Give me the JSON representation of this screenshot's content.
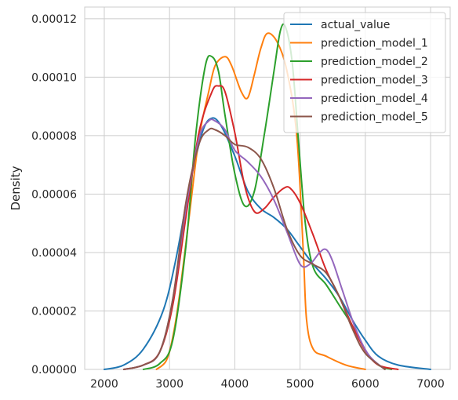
{
  "chart_data": {
    "type": "line",
    "title": "",
    "xlabel": "",
    "ylabel": "Density",
    "xlim": [
      1700,
      7300
    ],
    "ylim": [
      0,
      0.000124
    ],
    "xticks": [
      2000,
      3000,
      4000,
      5000,
      6000,
      7000
    ],
    "xtick_labels": [
      "2000",
      "3000",
      "4000",
      "5000",
      "6000",
      "7000"
    ],
    "yticks": [
      0,
      2e-05,
      4e-05,
      6e-05,
      8e-05,
      0.0001,
      0.00012
    ],
    "ytick_labels": [
      "0.00000",
      "0.00002",
      "0.00004",
      "0.00006",
      "0.00008",
      "0.00010",
      "0.00012"
    ],
    "grid": true,
    "legend_position": "top-right",
    "series": [
      {
        "name": "actual_value",
        "color": "#1f77b4",
        "points": [
          [
            2000,
            0
          ],
          [
            2300,
            1.5e-06
          ],
          [
            2600,
            7e-06
          ],
          [
            2900,
            2e-05
          ],
          [
            3100,
            3.8e-05
          ],
          [
            3300,
            6.2e-05
          ],
          [
            3500,
            8.1e-05
          ],
          [
            3650,
            8.6e-05
          ],
          [
            3800,
            8.3e-05
          ],
          [
            4000,
            7.3e-05
          ],
          [
            4200,
            6.1e-05
          ],
          [
            4400,
            5.5e-05
          ],
          [
            4600,
            5.2e-05
          ],
          [
            4800,
            4.8e-05
          ],
          [
            5000,
            4.2e-05
          ],
          [
            5200,
            3.6e-05
          ],
          [
            5400,
            3.1e-05
          ],
          [
            5600,
            2.5e-05
          ],
          [
            5800,
            1.7e-05
          ],
          [
            6000,
            1e-05
          ],
          [
            6200,
            4.5e-06
          ],
          [
            6500,
            1.5e-06
          ],
          [
            7000,
            0
          ]
        ]
      },
      {
        "name": "prediction_model_1",
        "color": "#ff7f0e",
        "points": [
          [
            2800,
            0
          ],
          [
            2950,
            3e-06
          ],
          [
            3050,
            1.1e-05
          ],
          [
            3150,
            2.5e-05
          ],
          [
            3300,
            5.2e-05
          ],
          [
            3450,
            7.9e-05
          ],
          [
            3600,
            9.5e-05
          ],
          [
            3700,
            0.000104
          ],
          [
            3850,
            0.000107
          ],
          [
            3950,
            0.000104
          ],
          [
            4100,
            9.5e-05
          ],
          [
            4200,
            9.3e-05
          ],
          [
            4300,
            0.000101
          ],
          [
            4400,
            0.00011
          ],
          [
            4500,
            0.000115
          ],
          [
            4650,
            0.000112
          ],
          [
            4800,
            0.000102
          ],
          [
            4950,
            8e-05
          ],
          [
            5050,
            4e-05
          ],
          [
            5100,
            1.7e-05
          ],
          [
            5200,
            7e-06
          ],
          [
            5400,
            4.5e-06
          ],
          [
            5700,
            1.5e-06
          ],
          [
            6000,
            0
          ]
        ]
      },
      {
        "name": "prediction_model_2",
        "color": "#2ca02c",
        "points": [
          [
            2600,
            0
          ],
          [
            2850,
            2e-06
          ],
          [
            3050,
            1e-05
          ],
          [
            3250,
            4.2e-05
          ],
          [
            3400,
            8e-05
          ],
          [
            3550,
            0.000104
          ],
          [
            3650,
            0.000107
          ],
          [
            3750,
            0.000102
          ],
          [
            3850,
            8.7e-05
          ],
          [
            4000,
            6.7e-05
          ],
          [
            4150,
            5.6e-05
          ],
          [
            4300,
            6.1e-05
          ],
          [
            4450,
            8e-05
          ],
          [
            4600,
            0.000102
          ],
          [
            4700,
            0.000116
          ],
          [
            4780,
            0.000117
          ],
          [
            4880,
            0.000105
          ],
          [
            4980,
            7.7e-05
          ],
          [
            5080,
            5e-05
          ],
          [
            5200,
            3.5e-05
          ],
          [
            5400,
            2.9e-05
          ],
          [
            5600,
            2.2e-05
          ],
          [
            5800,
            1.5e-05
          ],
          [
            6000,
            6.5e-06
          ],
          [
            6200,
            1.5e-06
          ],
          [
            6400,
            0
          ]
        ]
      },
      {
        "name": "prediction_model_3",
        "color": "#d62728",
        "points": [
          [
            2300,
            0
          ],
          [
            2600,
            1.5e-06
          ],
          [
            2850,
            6e-06
          ],
          [
            3050,
            2.2e-05
          ],
          [
            3250,
            5.2e-05
          ],
          [
            3450,
            8.1e-05
          ],
          [
            3650,
            9.5e-05
          ],
          [
            3750,
            9.7e-05
          ],
          [
            3850,
            9.5e-05
          ],
          [
            4000,
            8.1e-05
          ],
          [
            4150,
            6.3e-05
          ],
          [
            4300,
            5.4e-05
          ],
          [
            4450,
            5.5e-05
          ],
          [
            4600,
            5.9e-05
          ],
          [
            4750,
            6.2e-05
          ],
          [
            4850,
            6.2e-05
          ],
          [
            5000,
            5.7e-05
          ],
          [
            5200,
            4.6e-05
          ],
          [
            5400,
            3.4e-05
          ],
          [
            5600,
            2.5e-05
          ],
          [
            5800,
            1.5e-05
          ],
          [
            6000,
            6.5e-06
          ],
          [
            6200,
            1.5e-06
          ],
          [
            6500,
            0
          ]
        ]
      },
      {
        "name": "prediction_model_4",
        "color": "#9467bd",
        "points": [
          [
            2300,
            0
          ],
          [
            2600,
            1.5e-06
          ],
          [
            2850,
            6e-06
          ],
          [
            3050,
            2.4e-05
          ],
          [
            3250,
            5.5e-05
          ],
          [
            3450,
            7.9e-05
          ],
          [
            3600,
            8.5e-05
          ],
          [
            3700,
            8.5e-05
          ],
          [
            3850,
            8.2e-05
          ],
          [
            4000,
            7.5e-05
          ],
          [
            4200,
            7.1e-05
          ],
          [
            4400,
            6.6e-05
          ],
          [
            4600,
            5.8e-05
          ],
          [
            4800,
            4.7e-05
          ],
          [
            5000,
            3.6e-05
          ],
          [
            5150,
            3.6e-05
          ],
          [
            5300,
            4e-05
          ],
          [
            5400,
            4.1e-05
          ],
          [
            5500,
            3.7e-05
          ],
          [
            5650,
            2.7e-05
          ],
          [
            5850,
            1.4e-05
          ],
          [
            6050,
            5e-06
          ],
          [
            6300,
            0
          ]
        ]
      },
      {
        "name": "prediction_model_5",
        "color": "#8c564b",
        "points": [
          [
            2300,
            0
          ],
          [
            2600,
            1.5e-06
          ],
          [
            2850,
            6e-06
          ],
          [
            3050,
            2.4e-05
          ],
          [
            3250,
            5.7e-05
          ],
          [
            3450,
            7.7e-05
          ],
          [
            3600,
            8.2e-05
          ],
          [
            3700,
            8.2e-05
          ],
          [
            3850,
            8e-05
          ],
          [
            4000,
            7.7e-05
          ],
          [
            4200,
            7.6e-05
          ],
          [
            4400,
            7.2e-05
          ],
          [
            4600,
            6.2e-05
          ],
          [
            4800,
            4.8e-05
          ],
          [
            5000,
            3.9e-05
          ],
          [
            5200,
            3.6e-05
          ],
          [
            5400,
            3.3e-05
          ],
          [
            5600,
            2.5e-05
          ],
          [
            5800,
            1.4e-05
          ],
          [
            6000,
            5.5e-06
          ],
          [
            6300,
            0
          ]
        ]
      }
    ]
  }
}
